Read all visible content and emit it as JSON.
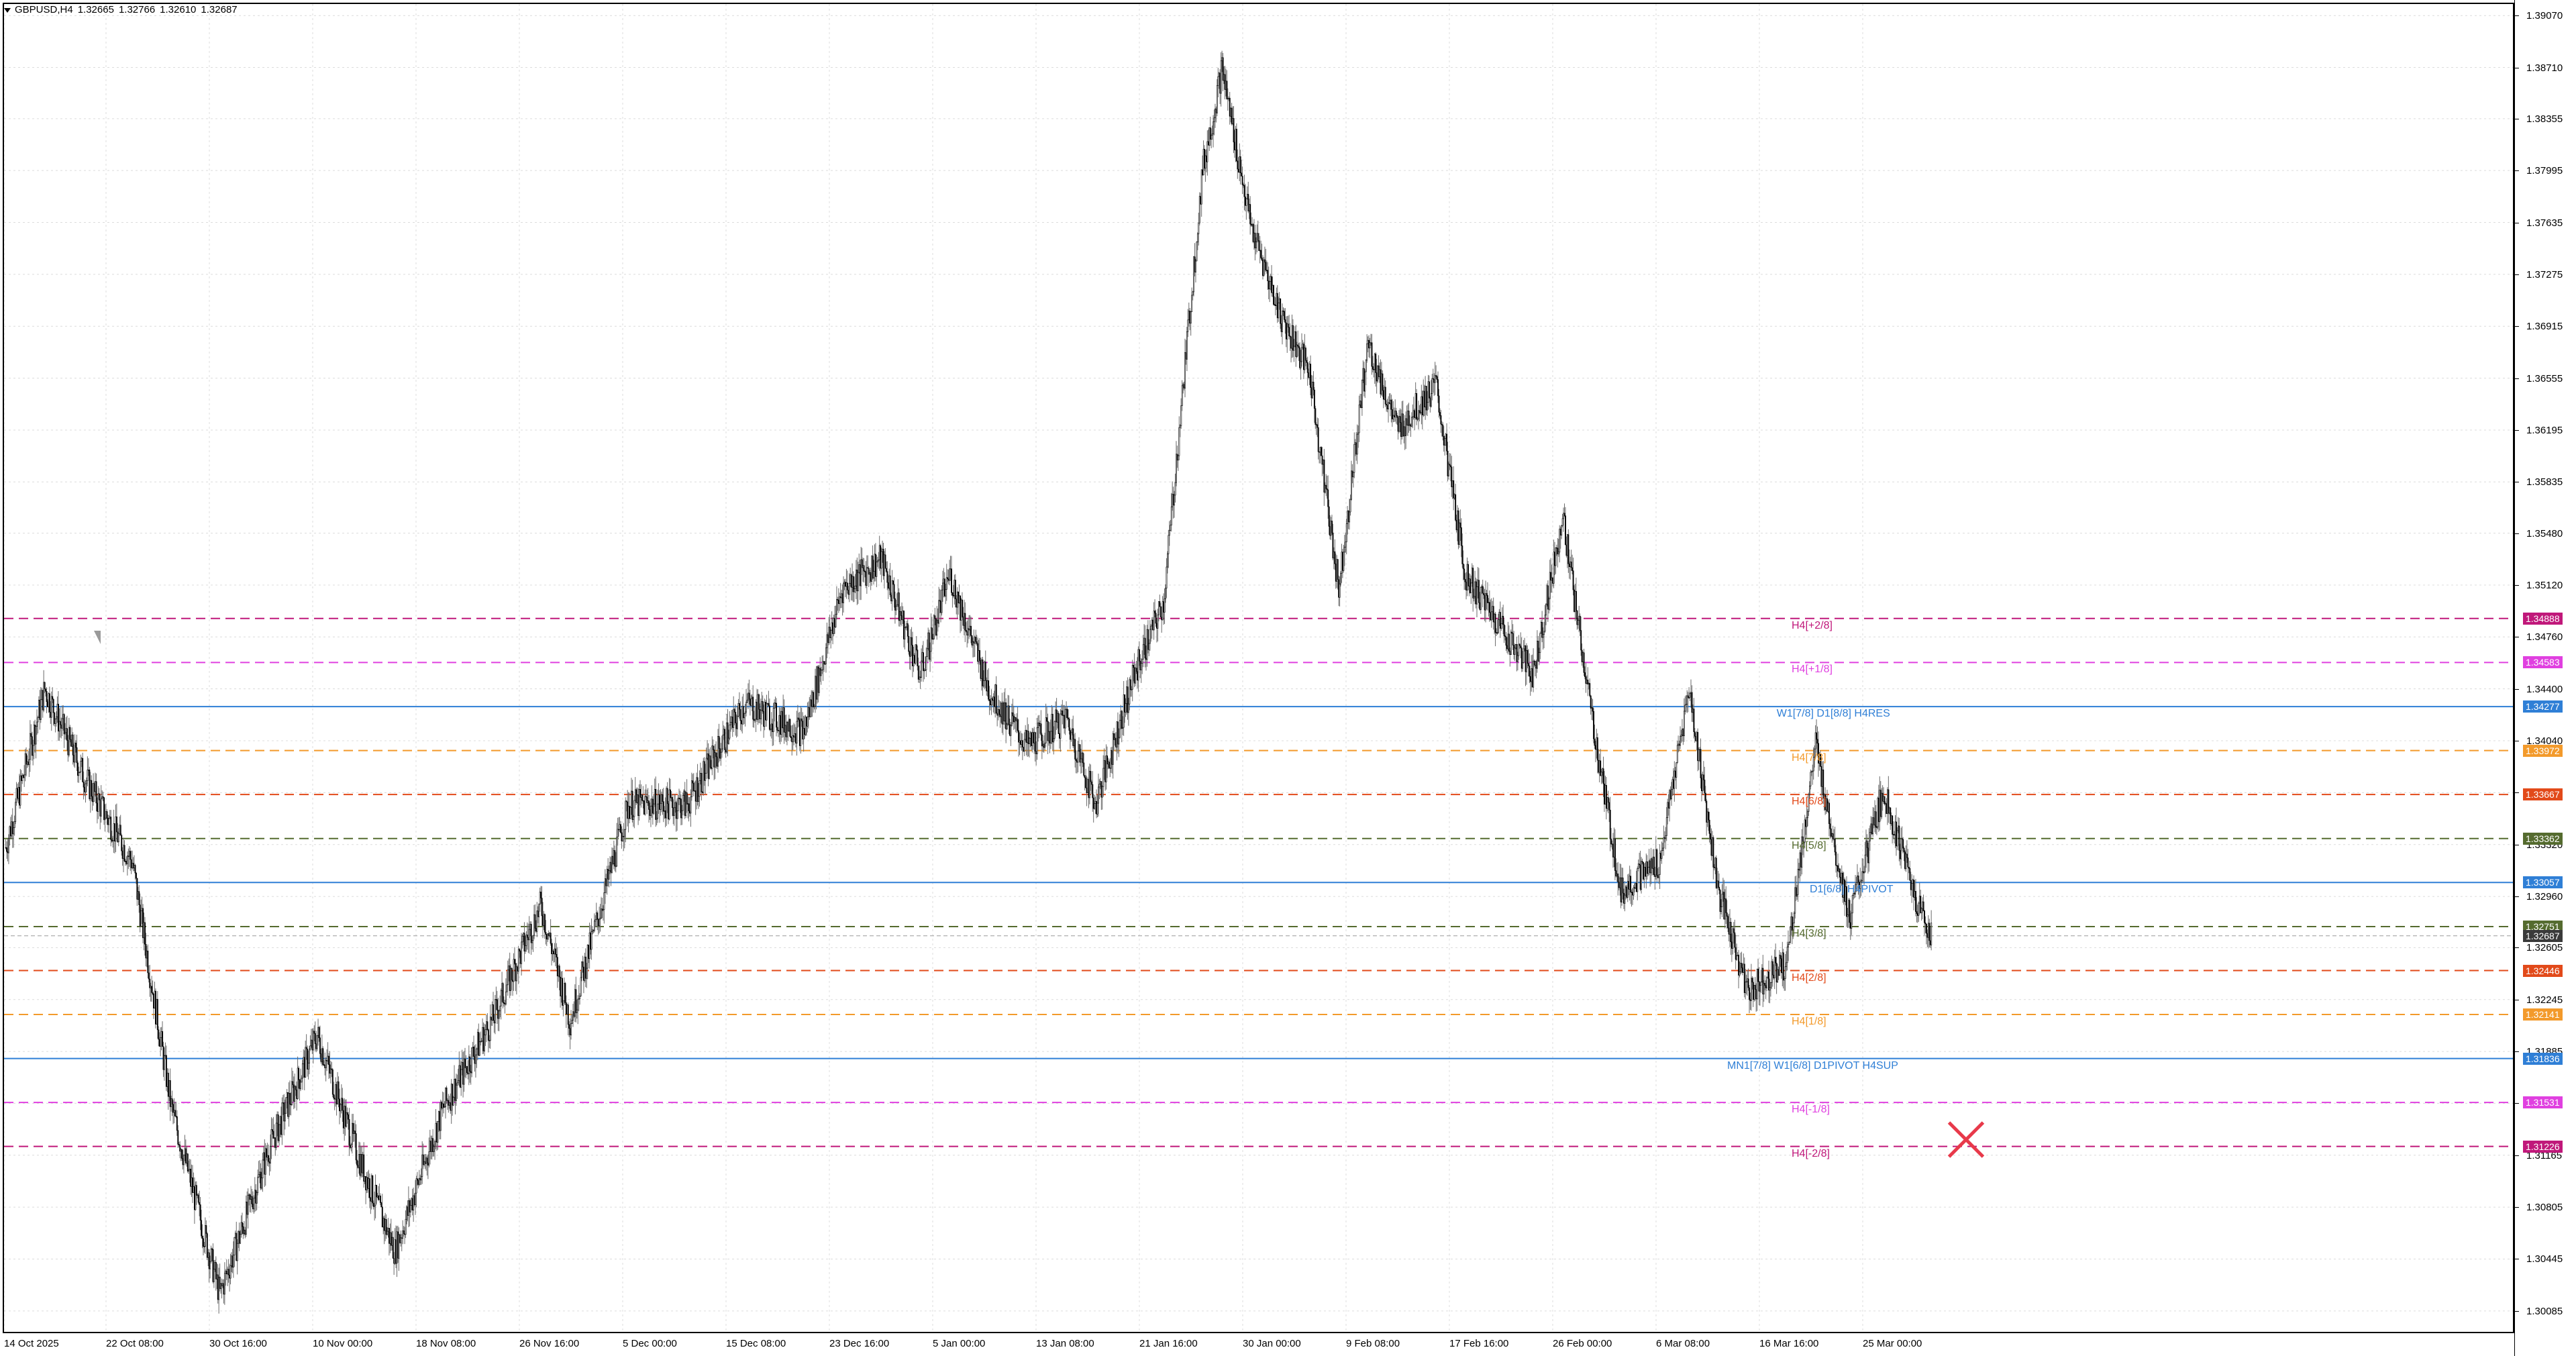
{
  "header": {
    "symbol": "GBPUSD,H4",
    "open": "1.32665",
    "high": "1.32766",
    "low": "1.32610",
    "close": "1.32687"
  },
  "colors": {
    "grid": "#dcdcdc",
    "candle": "#000000",
    "wick": "#6a6a6a",
    "mn_w_blue": "#2f7fd6",
    "h4_magenta": "#e040e0",
    "h4_dark_magenta": "#c0187a",
    "h4_orange": "#f39a2b",
    "h4_red_orange": "#e24a1a",
    "h4_olive": "#556b2f",
    "h4_gray": "#9a9a9a",
    "close_marker": "#e8394a"
  },
  "price_axis": {
    "ticks": [
      "1.39070",
      "1.38710",
      "1.38355",
      "1.37995",
      "1.37635",
      "1.37275",
      "1.36915",
      "1.36555",
      "1.36195",
      "1.35835",
      "1.35480",
      "1.35120",
      "1.34760",
      "1.34400",
      "1.34040",
      "1.33680",
      "1.33320",
      "1.32960",
      "1.32605",
      "1.32245",
      "1.31885",
      "1.31525",
      "1.31165",
      "1.30805",
      "1.30445",
      "1.30085"
    ]
  },
  "time_axis": {
    "ticks": [
      "14 Oct 2025",
      "22 Oct 08:00",
      "30 Oct 16:00",
      "10 Nov 00:00",
      "18 Nov 08:00",
      "26 Nov 16:00",
      "5 Dec 00:00",
      "15 Dec 08:00",
      "23 Dec 16:00",
      "5 Jan 00:00",
      "13 Jan 08:00",
      "21 Jan 16:00",
      "30 Jan 00:00",
      "9 Feb 08:00",
      "17 Feb 16:00",
      "26 Feb 00:00",
      "6 Mar 08:00",
      "16 Mar 16:00",
      "25 Mar 00:00"
    ]
  },
  "levels": [
    {
      "price": 1.34888,
      "tag": "1.34888",
      "label": "H4[+2/8]",
      "color": "#c0187a",
      "style": "dash"
    },
    {
      "price": 1.34583,
      "tag": "1.34583",
      "label": "H4[+1/8]",
      "color": "#e040e0",
      "style": "dash"
    },
    {
      "price": 1.34277,
      "tag": "1.34277",
      "label": "W1[7/8] D1[8/8] H4RES",
      "color": "#2f7fd6",
      "style": "solid"
    },
    {
      "price": 1.33972,
      "tag": "1.33972",
      "label": "H4[7/8]",
      "color": "#f39a2b",
      "style": "dash"
    },
    {
      "price": 1.33667,
      "tag": "1.33667",
      "label": "H4[6/8]",
      "color": "#e24a1a",
      "style": "dash"
    },
    {
      "price": 1.33362,
      "tag": "1.33362",
      "label": "H4[5/8]",
      "color": "#556b2f",
      "style": "dash"
    },
    {
      "price": 1.33057,
      "tag": "1.33057",
      "label": "D1[6/8] H4PIVOT",
      "color": "#2f7fd6",
      "style": "solid"
    },
    {
      "price": 1.32751,
      "tag": "1.32751",
      "label": "H4[3/8]",
      "color": "#556b2f",
      "style": "dash"
    },
    {
      "price": 1.32446,
      "tag": "1.32446",
      "label": "H4[2/8]",
      "color": "#e24a1a",
      "style": "dash"
    },
    {
      "price": 1.32141,
      "tag": "1.32141",
      "label": "H4[1/8]",
      "color": "#f39a2b",
      "style": "dash"
    },
    {
      "price": 1.31836,
      "tag": "1.31836",
      "label": "MN1[7/8] W1[6/8] D1PIVOT H4SUP",
      "color": "#2f7fd6",
      "style": "solid"
    },
    {
      "price": 1.31531,
      "tag": "1.31531",
      "label": "H4[-1/8]",
      "color": "#e040e0",
      "style": "dash"
    },
    {
      "price": 1.31226,
      "tag": "1.31226",
      "label": "H4[-2/8]",
      "color": "#c0187a",
      "style": "dash"
    }
  ],
  "current_price": {
    "price": 1.32687,
    "tag": "1.32687",
    "color": "#3a3a3a"
  },
  "chart_data": {
    "type": "candlestick",
    "y_range": [
      1.2994,
      1.3915
    ],
    "waypoints": [
      [
        0,
        1.333
      ],
      [
        40,
        1.344
      ],
      [
        80,
        1.338
      ],
      [
        130,
        1.332
      ],
      [
        170,
        1.315
      ],
      [
        220,
        1.302
      ],
      [
        270,
        1.312
      ],
      [
        320,
        1.32
      ],
      [
        360,
        1.312
      ],
      [
        400,
        1.305
      ],
      [
        450,
        1.315
      ],
      [
        500,
        1.321
      ],
      [
        550,
        1.329
      ],
      [
        580,
        1.321
      ],
      [
        640,
        1.336
      ],
      [
        700,
        1.336
      ],
      [
        760,
        1.343
      ],
      [
        820,
        1.341
      ],
      [
        860,
        1.351
      ],
      [
        900,
        1.353
      ],
      [
        940,
        1.345
      ],
      [
        970,
        1.352
      ],
      [
        1010,
        1.344
      ],
      [
        1050,
        1.34
      ],
      [
        1090,
        1.342
      ],
      [
        1120,
        1.336
      ],
      [
        1160,
        1.345
      ],
      [
        1190,
        1.35
      ],
      [
        1230,
        1.38
      ],
      [
        1250,
        1.387
      ],
      [
        1280,
        1.376
      ],
      [
        1310,
        1.37
      ],
      [
        1340,
        1.366
      ],
      [
        1370,
        1.351
      ],
      [
        1400,
        1.368
      ],
      [
        1430,
        1.362
      ],
      [
        1470,
        1.365
      ],
      [
        1500,
        1.352
      ],
      [
        1540,
        1.348
      ],
      [
        1570,
        1.345
      ],
      [
        1600,
        1.356
      ],
      [
        1630,
        1.342
      ],
      [
        1660,
        1.33
      ],
      [
        1700,
        1.332
      ],
      [
        1730,
        1.344
      ],
      [
        1760,
        1.33
      ],
      [
        1790,
        1.323
      ],
      [
        1830,
        1.325
      ],
      [
        1860,
        1.34
      ],
      [
        1895,
        1.328
      ],
      [
        1930,
        1.337
      ],
      [
        1965,
        1.329
      ],
      [
        1980,
        1.3269
      ]
    ]
  }
}
